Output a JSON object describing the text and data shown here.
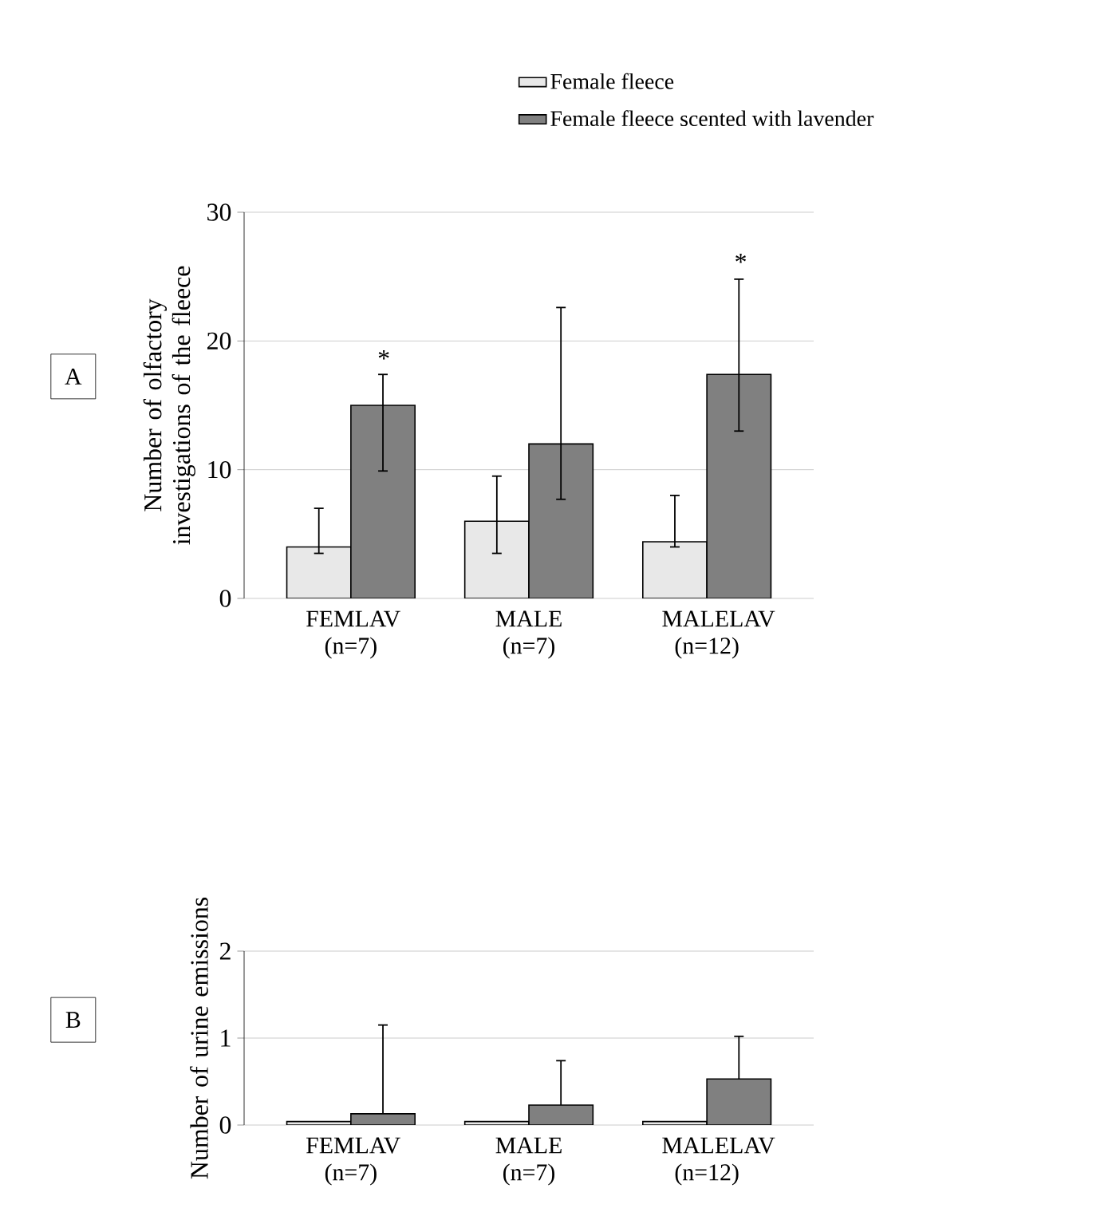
{
  "chart_data": [
    {
      "type": "bar",
      "title": "A",
      "ylabel": "Number of olfactory investigations of the fleece",
      "categories": [
        "FEMLAV (n=7)",
        "MALE (n=7)",
        "MALELAV (n=12)"
      ],
      "series": [
        {
          "name": "Female fleece",
          "color": "#e8e8e8",
          "values": [
            4,
            6,
            4.4
          ],
          "errors": [
            [
              3.5,
              7
            ],
            [
              3.5,
              9.5
            ],
            [
              4,
              8
            ]
          ]
        },
        {
          "name": "Female fleece scented with lavender",
          "color": "#808080",
          "values": [
            15,
            12,
            17.4
          ],
          "errors": [
            [
              9.9,
              17.4
            ],
            [
              7.7,
              22.6
            ],
            [
              13,
              24.8
            ]
          ]
        }
      ],
      "ylim": [
        0,
        30
      ],
      "yticks": [
        0,
        10,
        20,
        30
      ],
      "grid": "y",
      "legend": "top right",
      "annotations": [
        "*",
        "*"
      ]
    },
    {
      "type": "bar",
      "title": "B",
      "ylabel": "Number of urine emissions",
      "categories": [
        "FEMLAV (n=7)",
        "MALE (n=7)",
        "MALELAV (n=12)"
      ],
      "series": [
        {
          "color": "#e8e8e8",
          "values": [
            0.04,
            0.04,
            0.04
          ]
        },
        {
          "color": "#808080",
          "values": [
            0.13,
            0.23,
            0.53
          ],
          "errors": [
            [
              0.13,
              1.15
            ],
            [
              0.23,
              0.74
            ],
            [
              0.53,
              1.02
            ]
          ]
        }
      ],
      "ylim": [
        0,
        2
      ],
      "yticks": [
        0,
        1,
        2
      ],
      "grid": "y"
    }
  ]
}
